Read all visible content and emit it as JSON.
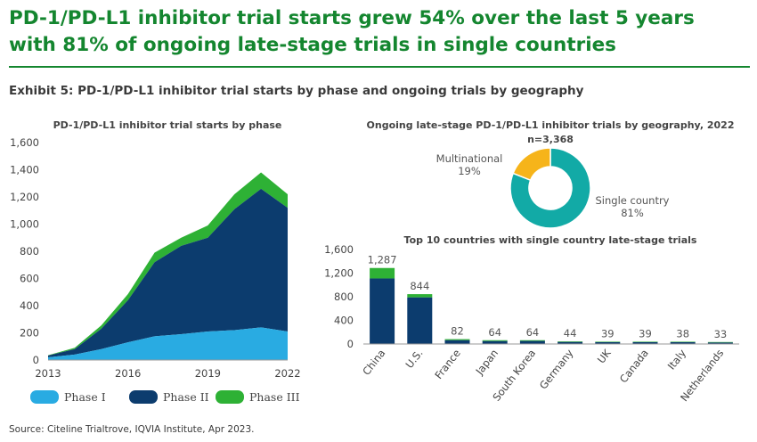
{
  "header": {
    "title": "PD-1/PD-L1 inhibitor trial starts grew 54% over the last 5 years with 81% of ongoing late-stage trials in single countries",
    "exhibit": "Exhibit 5: PD-1/PD-L1 inhibitor trial starts by phase and ongoing trials by geography"
  },
  "footer": {
    "source": "Source: Citeline Trialtrove, IQVIA Institute, Apr 2023."
  },
  "colors": {
    "phase1": "#29abe2",
    "phase2": "#0c3c6e",
    "phase3": "#2eb135",
    "multinational": "#f6b41a",
    "single_country": "#12aaa6",
    "title_green": "#14862f"
  },
  "chart_data": [
    {
      "type": "area",
      "stacked": true,
      "title": "PD-1/PD-L1 inhibitor trial starts by phase",
      "x": [
        2013,
        2014,
        2015,
        2016,
        2017,
        2018,
        2019,
        2020,
        2021,
        2022
      ],
      "x_ticks": [
        "2013",
        "2016",
        "2019",
        "2022"
      ],
      "ylim": [
        0,
        1600
      ],
      "y_ticks": [
        "0",
        "200",
        "400",
        "600",
        "800",
        "1,000",
        "1,200",
        "1,400",
        "1,600"
      ],
      "grid": false,
      "legend": "bottom",
      "series": [
        {
          "name": "Phase I",
          "values": [
            20,
            40,
            80,
            130,
            175,
            190,
            210,
            220,
            240,
            210
          ]
        },
        {
          "name": "Phase II",
          "values": [
            13,
            40,
            150,
            310,
            545,
            650,
            690,
            890,
            1020,
            910
          ]
        },
        {
          "name": "Phase III",
          "values": [
            2,
            10,
            25,
            45,
            70,
            60,
            90,
            110,
            120,
            100
          ]
        }
      ]
    },
    {
      "type": "pie",
      "donut": true,
      "title": "Ongoing late-stage PD-1/PD-L1 inhibitor trials by geography, 2022",
      "subtitle": "n=3,368",
      "slices": [
        {
          "name": "Single country",
          "label": "81%",
          "value": 81
        },
        {
          "name": "Multinational",
          "label": "19%",
          "value": 19
        }
      ]
    },
    {
      "type": "bar",
      "stacked": true,
      "title": "Top 10 countries with single country late-stage trials",
      "categories": [
        "China",
        "U.S.",
        "France",
        "Japan",
        "South Korea",
        "Germany",
        "UK",
        "Canada",
        "Italy",
        "Netherlands"
      ],
      "values": [
        1287,
        844,
        82,
        64,
        64,
        44,
        39,
        39,
        38,
        33
      ],
      "value_labels": [
        "1,287",
        "844",
        "82",
        "64",
        "64",
        "44",
        "39",
        "39",
        "38",
        "33"
      ],
      "series": [
        {
          "name": "Phase II",
          "values": [
            1110,
            790,
            65,
            50,
            52,
            35,
            31,
            31,
            30,
            26
          ]
        },
        {
          "name": "Phase III",
          "values": [
            177,
            54,
            17,
            14,
            12,
            9,
            8,
            8,
            8,
            7
          ]
        }
      ],
      "ylim": [
        0,
        1600
      ],
      "y_ticks": [
        "0",
        "400",
        "800",
        "1,200",
        "1,600"
      ]
    }
  ]
}
